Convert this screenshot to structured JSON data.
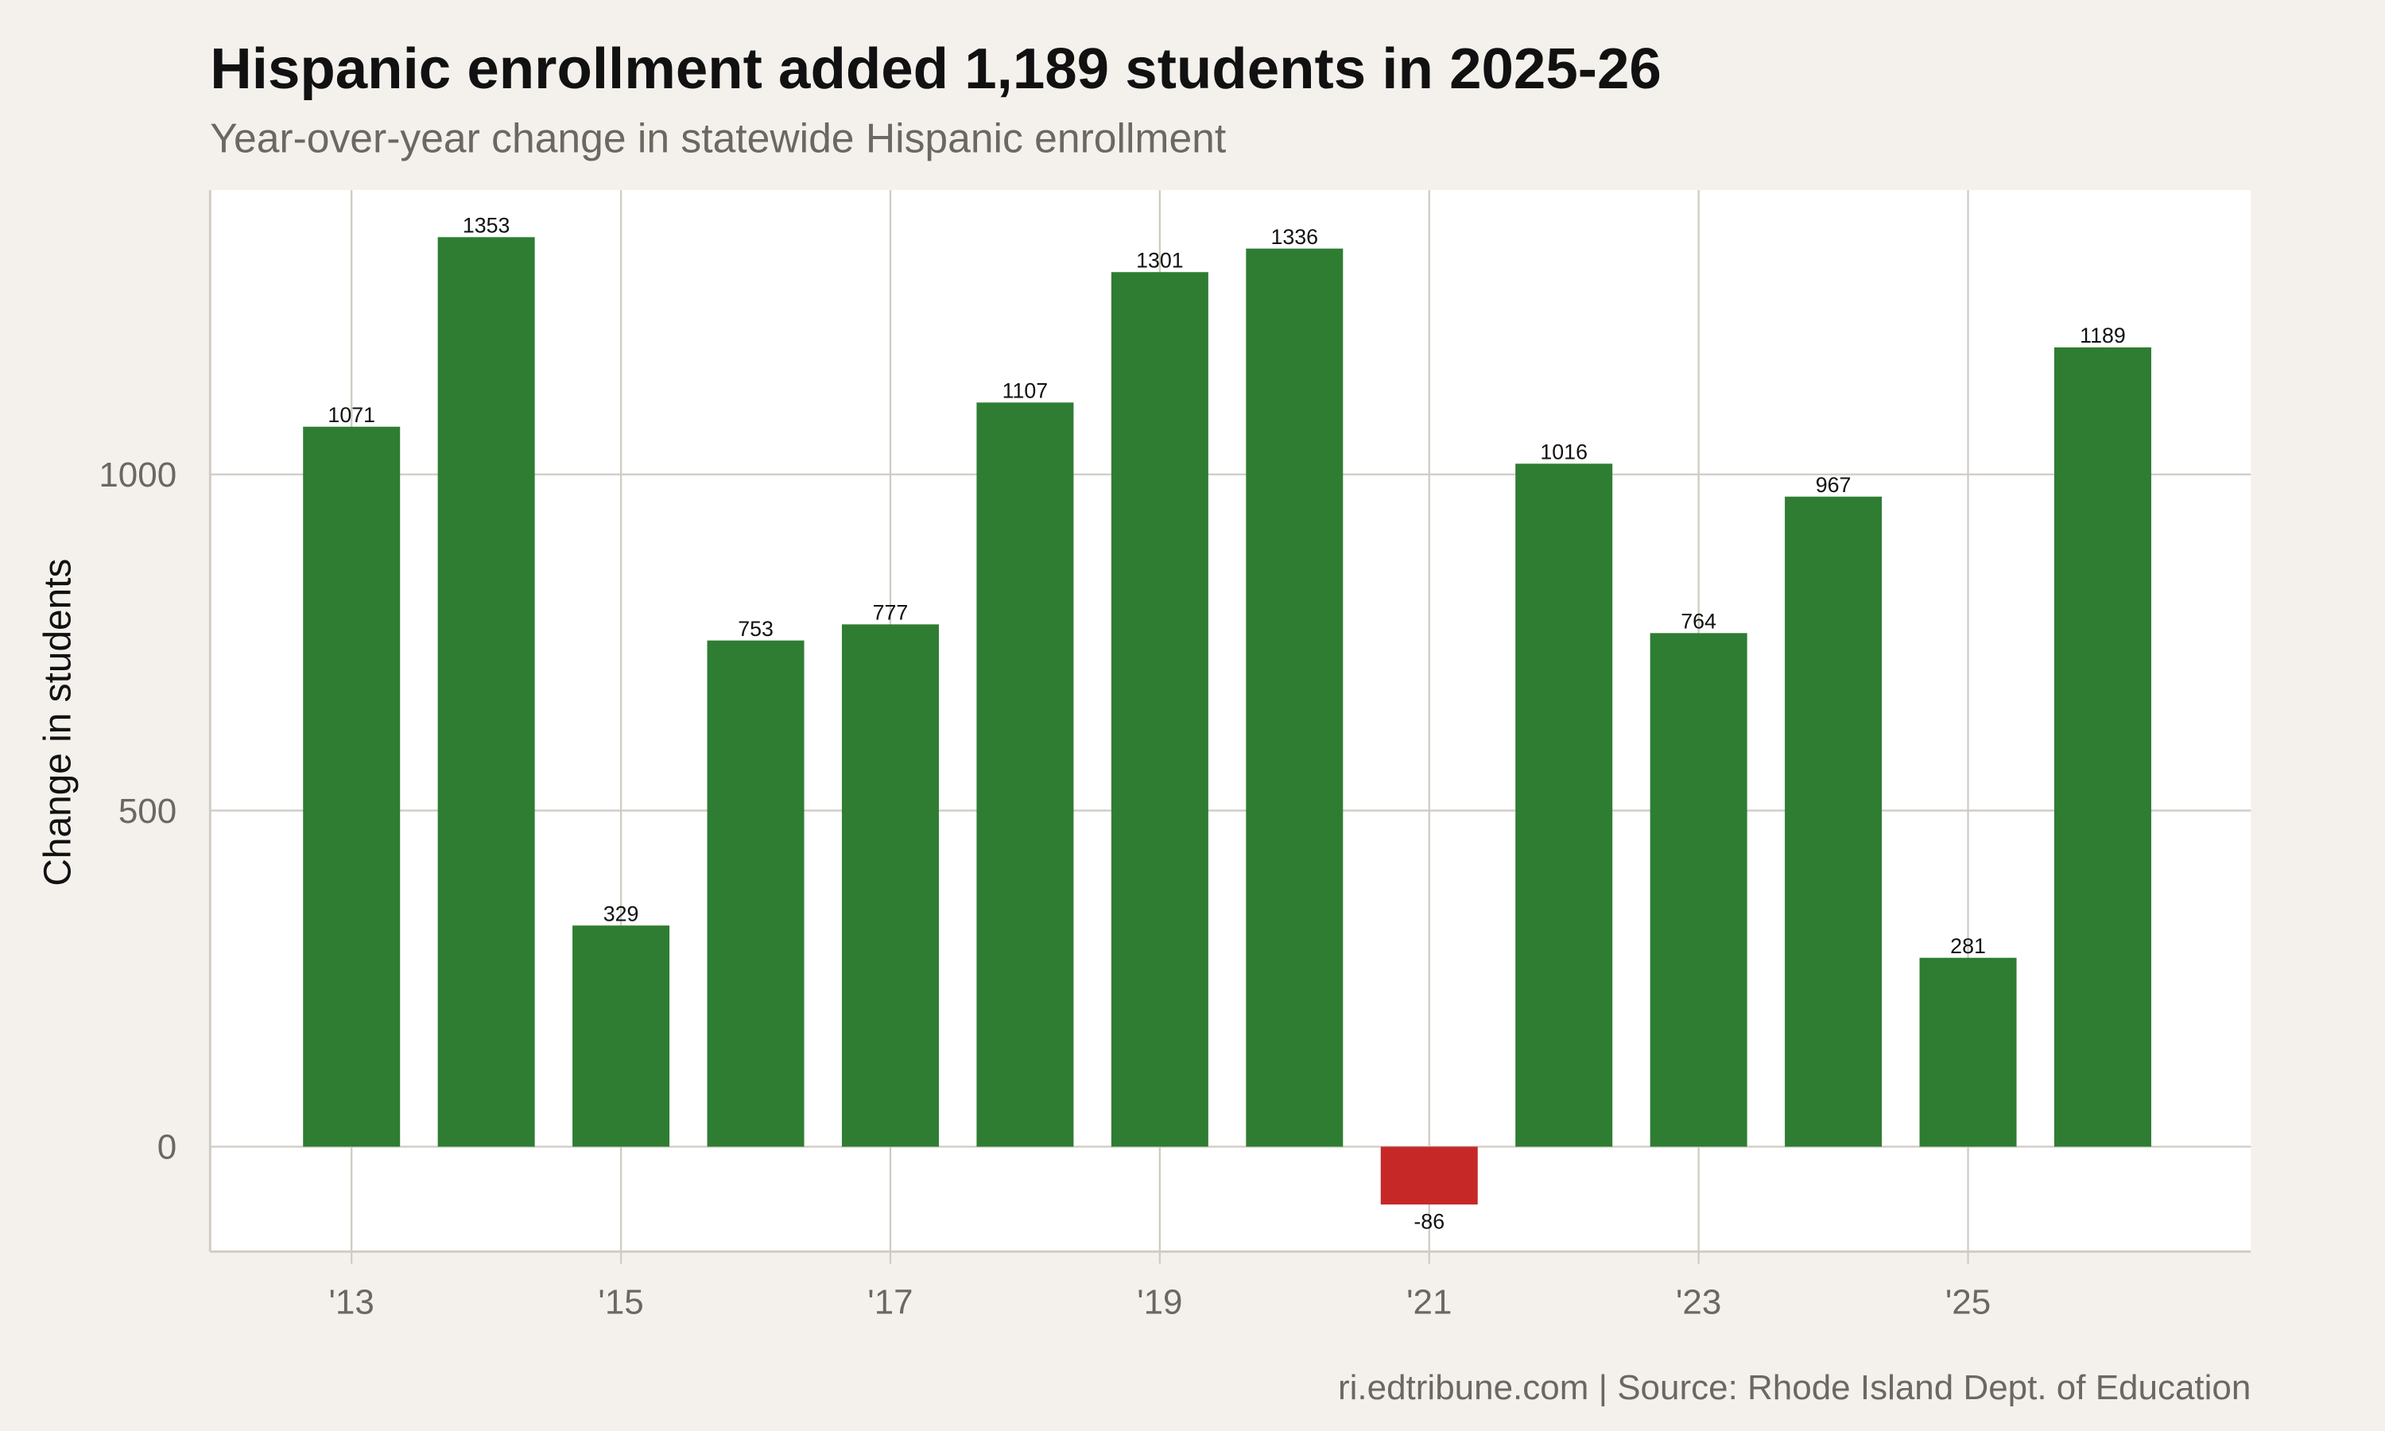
{
  "chart_data": {
    "type": "bar",
    "title": "Hispanic enrollment added 1,189 students in 2025-26",
    "subtitle": "Year-over-year change in statewide Hispanic enrollment",
    "xlabel": "",
    "ylabel": "Change in students",
    "caption": "ri.edtribune.com | Source: Rhode Island Dept. of Education",
    "x": [
      2013,
      2014,
      2015,
      2016,
      2017,
      2018,
      2019,
      2020,
      2021,
      2022,
      2023,
      2024,
      2025,
      2026
    ],
    "values": [
      1071,
      1353,
      329,
      753,
      777,
      1107,
      1301,
      1336,
      -86,
      1016,
      764,
      967,
      281,
      1189
    ],
    "data_labels": [
      "1071",
      "1353",
      "329",
      "753",
      "777",
      "1107",
      "1301",
      "1336",
      "-86",
      "1016",
      "764",
      "967",
      "281",
      "1189"
    ],
    "xticks": [
      2013,
      2015,
      2017,
      2019,
      2021,
      2023,
      2025
    ],
    "xtick_labels": [
      "'13",
      "'15",
      "'17",
      "'19",
      "'21",
      "'23",
      "'25"
    ],
    "yticks": [
      0,
      500,
      1000
    ],
    "ytick_labels": [
      "0",
      "500",
      "1000"
    ],
    "ylim": [
      -156,
      1423
    ],
    "xlim": [
      2011.95,
      2027.1
    ],
    "grid": true,
    "colors": {
      "positive": "#2e7d32",
      "negative": "#c62828",
      "background": "#f4f1ec",
      "panel": "#ffffff",
      "grid": "#d0cbc2"
    }
  }
}
